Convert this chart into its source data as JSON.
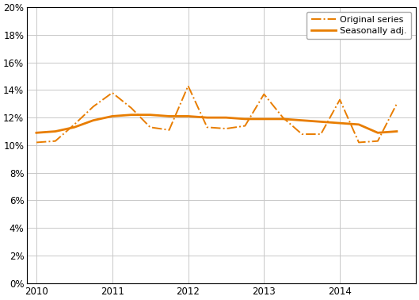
{
  "original_x": [
    2010.0,
    2010.25,
    2010.5,
    2010.75,
    2011.0,
    2011.25,
    2011.5,
    2011.75,
    2012.0,
    2012.25,
    2012.5,
    2012.75,
    2013.0,
    2013.25,
    2013.5,
    2013.75,
    2014.0,
    2014.25,
    2014.5,
    2014.75
  ],
  "original_y": [
    0.102,
    0.103,
    0.115,
    0.128,
    0.138,
    0.127,
    0.113,
    0.111,
    0.143,
    0.113,
    0.112,
    0.114,
    0.137,
    0.12,
    0.108,
    0.108,
    0.133,
    0.102,
    0.103,
    0.13
  ],
  "seasonal_x": [
    2010.0,
    2010.25,
    2010.5,
    2010.75,
    2011.0,
    2011.25,
    2011.5,
    2011.75,
    2012.0,
    2012.25,
    2012.5,
    2012.75,
    2013.0,
    2013.25,
    2013.5,
    2013.75,
    2014.0,
    2014.25,
    2014.5,
    2014.75
  ],
  "seasonal_y": [
    0.109,
    0.11,
    0.113,
    0.118,
    0.121,
    0.122,
    0.122,
    0.121,
    0.121,
    0.12,
    0.12,
    0.119,
    0.119,
    0.119,
    0.118,
    0.117,
    0.116,
    0.115,
    0.109,
    0.11
  ],
  "color": "#e87d00",
  "ylim": [
    0.0,
    0.2
  ],
  "yticks": [
    0.0,
    0.02,
    0.04,
    0.06,
    0.08,
    0.1,
    0.12,
    0.14,
    0.16,
    0.18,
    0.2
  ],
  "xlim": [
    2009.88,
    2015.0
  ],
  "xticks": [
    2010,
    2011,
    2012,
    2013,
    2014
  ],
  "legend_labels": [
    "Original series",
    "Seasonally adj."
  ],
  "background_color": "#ffffff",
  "grid_color": "#c8c8c8",
  "spine_color": "#000000",
  "tick_label_size": 8.5,
  "figsize": [
    5.29,
    3.78
  ],
  "dpi": 100
}
